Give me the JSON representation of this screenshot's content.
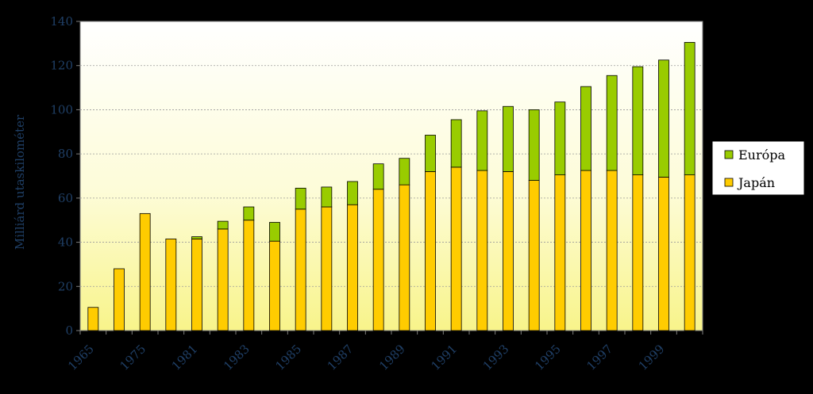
{
  "chart_data": {
    "type": "bar",
    "stacked": true,
    "title": "",
    "xlabel": "",
    "ylabel": "Milliárd utaskilométer",
    "ylim": [
      0,
      140
    ],
    "yticks": [
      0,
      20,
      40,
      60,
      80,
      100,
      120,
      140
    ],
    "grid": true,
    "legend_position": "right",
    "categories": [
      "1965",
      "",
      "1975",
      "",
      "1981",
      "",
      "1983",
      "",
      "1985",
      "",
      "1987",
      "",
      "1989",
      "",
      "1991",
      "",
      "1993",
      "",
      "1995",
      "",
      "1997",
      "",
      "1999",
      ""
    ],
    "series": [
      {
        "name": "Japán",
        "color": "#ffcc00",
        "values": [
          10.5,
          28,
          53,
          41.5,
          41.5,
          46,
          50,
          40.5,
          55,
          56,
          57,
          64,
          66,
          72,
          74,
          72.5,
          72,
          68,
          70.5,
          72.5,
          72.5,
          70.5,
          69.5,
          70.5
        ]
      },
      {
        "name": "Európa",
        "color": "#99cc00",
        "values": [
          0,
          0,
          0,
          0,
          1,
          3.5,
          6,
          8.5,
          9.5,
          9,
          10.5,
          11.5,
          12,
          16.5,
          21.5,
          27,
          29.5,
          32,
          33,
          38,
          43,
          49,
          53,
          60
        ]
      }
    ],
    "legend_order": [
      "Európa",
      "Japán"
    ]
  }
}
